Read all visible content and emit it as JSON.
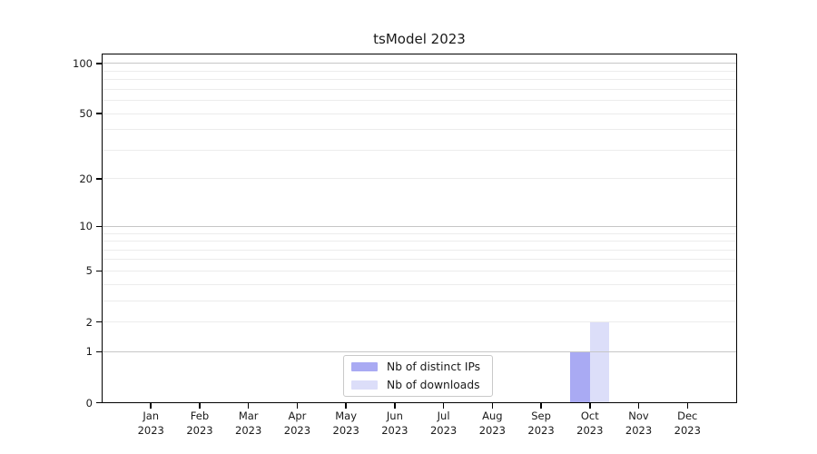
{
  "chart_data": {
    "type": "bar",
    "title": "tsModel 2023",
    "x": {
      "months": [
        "Jan",
        "Feb",
        "Mar",
        "Apr",
        "May",
        "Jun",
        "Jul",
        "Aug",
        "Sep",
        "Oct",
        "Nov",
        "Dec"
      ],
      "year": "2023"
    },
    "series": [
      {
        "name": "Nb of distinct IPs",
        "color": "#a9aaf3",
        "values": [
          0,
          0,
          0,
          0,
          0,
          0,
          0,
          0,
          0,
          1,
          0,
          0
        ]
      },
      {
        "name": "Nb of downloads",
        "color": "#dcdef9",
        "values": [
          0,
          0,
          0,
          0,
          0,
          0,
          0,
          0,
          0,
          2,
          0,
          0
        ]
      }
    ],
    "yaxis": {
      "scale": "log1p",
      "ticks": [
        0,
        1,
        2,
        5,
        10,
        20,
        50,
        100
      ],
      "ylim": [
        0,
        113
      ],
      "major_gridlines": [
        1,
        10,
        100
      ],
      "minor_gridlines": [
        2,
        3,
        4,
        5,
        6,
        7,
        8,
        9,
        20,
        30,
        40,
        50,
        60,
        70,
        80,
        90
      ]
    },
    "legend": {
      "position": "lower center"
    },
    "colors": {
      "major_grid": "#c6c6c6",
      "minor_grid": "#ececec",
      "axis": "#000000",
      "background": "#ffffff"
    }
  }
}
